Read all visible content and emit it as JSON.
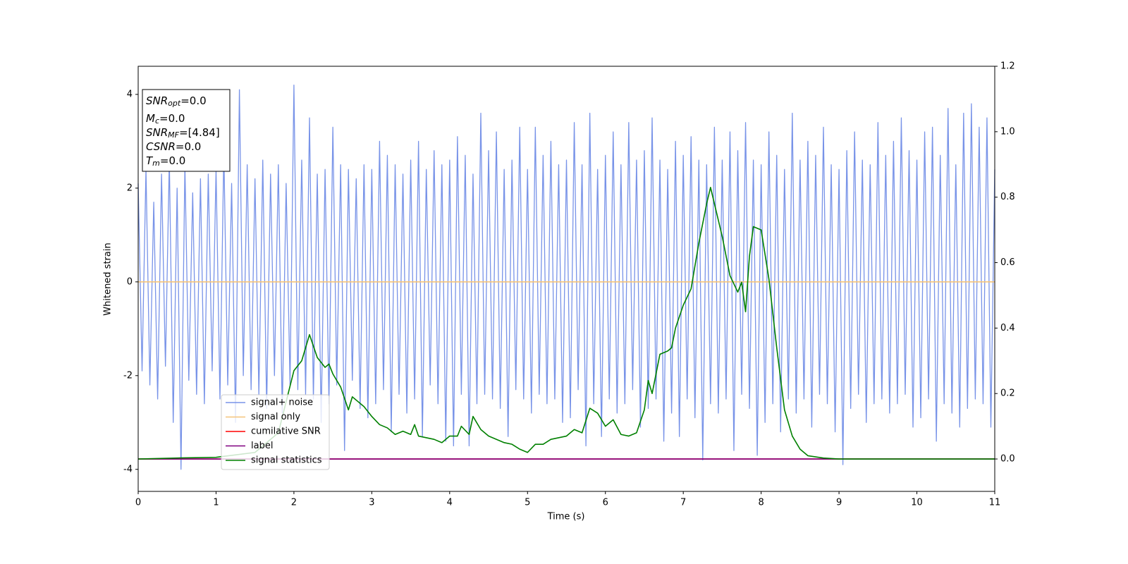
{
  "chart_data": {
    "type": "line",
    "xlabel": "Time (s)",
    "ylabel": "Whitened strain",
    "xlim": [
      0,
      11
    ],
    "xticks": [
      0,
      1,
      2,
      3,
      4,
      5,
      6,
      7,
      8,
      9,
      10,
      11
    ],
    "ylim": [
      -4.47,
      4.6
    ],
    "yticks": [
      -4,
      -2,
      0,
      2,
      4
    ],
    "y2lim": [
      -0.099,
      1.2
    ],
    "y2ticks": [
      {
        "value": 0,
        "label": "0.0"
      },
      0.2,
      0.4,
      0.6,
      0.8,
      {
        "value": 1,
        "label": "1.0"
      },
      1.2
    ],
    "legend_loc": "lower left",
    "annotation": [
      {
        "symbol": "SNR",
        "subscript": "opt",
        "text": "=0.0"
      },
      {
        "symbol": "M",
        "subscript": "c",
        "text": "=0.0"
      },
      {
        "symbol": "SNR",
        "subscript": "MF",
        "text": "=[4.84]"
      },
      {
        "symbol": "CSNR",
        "text": "=0.0"
      },
      {
        "symbol": "T",
        "subscript": "m",
        "text": "=0.0"
      }
    ],
    "series": [
      {
        "name": "signal+ noise",
        "color": "#7893e8",
        "x": [
          0,
          0.05,
          0.1,
          0.15,
          0.2,
          0.25,
          0.3,
          0.35,
          0.4,
          0.45,
          0.5,
          0.55,
          0.6,
          0.65,
          0.7,
          0.75,
          0.8,
          0.85,
          0.9,
          0.95,
          1,
          1.05,
          1.1,
          1.15,
          1.2,
          1.25,
          1.3,
          1.35,
          1.4,
          1.45,
          1.5,
          1.55,
          1.6,
          1.65,
          1.7,
          1.75,
          1.8,
          1.85,
          1.9,
          1.95,
          2,
          2.05,
          2.1,
          2.15,
          2.2,
          2.25,
          2.3,
          2.35,
          2.4,
          2.45,
          2.5,
          2.55,
          2.6,
          2.65,
          2.7,
          2.75,
          2.8,
          2.85,
          2.9,
          2.95,
          3,
          3.05,
          3.1,
          3.15,
          3.2,
          3.25,
          3.3,
          3.35,
          3.4,
          3.45,
          3.5,
          3.55,
          3.6,
          3.65,
          3.7,
          3.75,
          3.8,
          3.85,
          3.9,
          3.95,
          4,
          4.05,
          4.1,
          4.15,
          4.2,
          4.25,
          4.3,
          4.35,
          4.4,
          4.45,
          4.5,
          4.55,
          4.6,
          4.65,
          4.7,
          4.75,
          4.8,
          4.85,
          4.9,
          4.95,
          5,
          5.05,
          5.1,
          5.15,
          5.2,
          5.25,
          5.3,
          5.35,
          5.4,
          5.45,
          5.5,
          5.55,
          5.6,
          5.65,
          5.7,
          5.75,
          5.8,
          5.85,
          5.9,
          5.95,
          6,
          6.05,
          6.1,
          6.15,
          6.2,
          6.25,
          6.3,
          6.35,
          6.4,
          6.45,
          6.5,
          6.55,
          6.6,
          6.65,
          6.7,
          6.75,
          6.8,
          6.85,
          6.9,
          6.95,
          7,
          7.05,
          7.1,
          7.15,
          7.2,
          7.25,
          7.3,
          7.35,
          7.4,
          7.45,
          7.5,
          7.55,
          7.6,
          7.65,
          7.7,
          7.75,
          7.8,
          7.85,
          7.9,
          7.95,
          8,
          8.05,
          8.1,
          8.15,
          8.2,
          8.25,
          8.3,
          8.35,
          8.4,
          8.45,
          8.5,
          8.55,
          8.6,
          8.65,
          8.7,
          8.75,
          8.8,
          8.85,
          8.9,
          8.95,
          9,
          9.05,
          9.1,
          9.15,
          9.2,
          9.25,
          9.3,
          9.35,
          9.4,
          9.45,
          9.5,
          9.55,
          9.6,
          9.65,
          9.7,
          9.75,
          9.8,
          9.85,
          9.9,
          9.95,
          10,
          10.05,
          10.1,
          10.15,
          10.2,
          10.25,
          10.3,
          10.35,
          10.4,
          10.45,
          10.5,
          10.55,
          10.6,
          10.65,
          10.7,
          10.75,
          10.8,
          10.85,
          10.9,
          10.95,
          11
        ],
        "values": [
          2.1,
          -1.9,
          2.4,
          -2.2,
          1.7,
          -2.5,
          2.3,
          -1.8,
          2.6,
          -3.0,
          2.0,
          -4.0,
          2.5,
          -2.1,
          1.9,
          -2.4,
          2.2,
          -2.6,
          2.3,
          -1.9,
          2.4,
          -2.5,
          2.8,
          -2.2,
          2.1,
          -3.0,
          4.1,
          -2.0,
          2.5,
          -2.3,
          2.2,
          -2.4,
          2.6,
          -2.7,
          2.3,
          -2.0,
          2.5,
          -2.8,
          2.1,
          -2.2,
          4.2,
          -2.3,
          2.6,
          -2.4,
          3.5,
          -2.5,
          2.3,
          -3.0,
          2.4,
          -2.6,
          3.3,
          -2.2,
          2.5,
          -3.6,
          2.4,
          -2.1,
          2.2,
          -2.7,
          2.5,
          -2.9,
          2.4,
          -2.6,
          3.0,
          -2.3,
          2.7,
          -3.2,
          2.5,
          -2.4,
          2.3,
          -2.8,
          2.6,
          -2.5,
          3.0,
          -3.3,
          2.4,
          -2.2,
          2.8,
          -2.6,
          2.5,
          -3.4,
          2.6,
          -3.5,
          3.1,
          -2.4,
          2.7,
          -3.5,
          2.3,
          -2.6,
          3.6,
          -2.4,
          2.8,
          -2.5,
          3.2,
          -2.7,
          2.4,
          -3.3,
          2.6,
          -2.3,
          3.3,
          -2.5,
          2.4,
          -2.8,
          3.3,
          -2.4,
          2.7,
          -2.6,
          3.0,
          -2.5,
          2.5,
          -3.0,
          2.6,
          -2.9,
          3.4,
          -2.3,
          2.5,
          -3.5,
          3.6,
          -2.6,
          2.4,
          -3.3,
          2.7,
          -2.5,
          3.2,
          -2.8,
          2.5,
          -2.6,
          3.4,
          -2.3,
          2.6,
          -3.1,
          2.8,
          -2.7,
          3.5,
          -2.5,
          2.6,
          -3.4,
          2.4,
          -2.8,
          3.0,
          -3.3,
          2.7,
          -2.5,
          3.1,
          -2.9,
          2.6,
          -3.8,
          2.5,
          -2.6,
          3.3,
          -2.8,
          2.6,
          -2.5,
          3.2,
          -3.6,
          2.8,
          -2.4,
          3.4,
          -2.7,
          2.6,
          -3.7,
          2.5,
          -3.0,
          3.2,
          -2.6,
          2.7,
          -3.2,
          2.4,
          -2.5,
          3.6,
          -2.8,
          2.6,
          -2.5,
          3.0,
          -3.1,
          2.7,
          -2.4,
          3.3,
          -2.6,
          2.5,
          -3.2,
          2.4,
          -3.9,
          2.8,
          -2.7,
          3.2,
          -2.4,
          2.6,
          -3.0,
          2.5,
          -2.6,
          3.4,
          -2.5,
          2.7,
          -2.8,
          3.0,
          -2.6,
          3.5,
          -2.4,
          2.8,
          -3.1,
          2.6,
          -2.9,
          3.2,
          -2.5,
          3.3,
          -3.4,
          2.7,
          -2.6,
          3.7,
          -2.8,
          2.5,
          -3.1,
          3.6,
          -2.7,
          3.8,
          -2.5,
          3.3,
          -2.6,
          3.5,
          -3.1,
          2.4
        ]
      },
      {
        "name": "signal only",
        "color": "#f5c47a",
        "x": [
          0,
          11
        ],
        "values": [
          0,
          0
        ]
      },
      {
        "name": "cumilative SNR",
        "color": "#ff0000",
        "axis": "y2",
        "x": [
          0,
          11
        ],
        "values": [
          0,
          0
        ]
      },
      {
        "name": "label",
        "color": "#800080",
        "axis": "y2",
        "x": [
          0,
          11
        ],
        "values": [
          0,
          0
        ]
      },
      {
        "name": "signal statistics",
        "color": "#008000",
        "axis": "y2",
        "x": [
          0,
          0.5,
          1,
          1.5,
          1.8,
          2,
          2.1,
          2.2,
          2.3,
          2.4,
          2.45,
          2.5,
          2.6,
          2.7,
          2.75,
          2.9,
          3,
          3.1,
          3.2,
          3.3,
          3.4,
          3.5,
          3.55,
          3.6,
          3.8,
          3.9,
          4,
          4.1,
          4.15,
          4.25,
          4.3,
          4.4,
          4.5,
          4.7,
          4.8,
          4.9,
          5,
          5.1,
          5.2,
          5.3,
          5.5,
          5.6,
          5.7,
          5.8,
          5.9,
          6,
          6.1,
          6.2,
          6.3,
          6.4,
          6.5,
          6.55,
          6.6,
          6.7,
          6.8,
          6.85,
          6.9,
          7,
          7.1,
          7.2,
          7.3,
          7.35,
          7.5,
          7.6,
          7.7,
          7.75,
          7.8,
          7.85,
          7.9,
          8,
          8.1,
          8.2,
          8.3,
          8.4,
          8.5,
          8.6,
          8.8,
          9,
          10,
          11
        ],
        "values": [
          0,
          0.003,
          0.005,
          0.02,
          0.08,
          0.27,
          0.3,
          0.38,
          0.31,
          0.28,
          0.29,
          0.26,
          0.22,
          0.15,
          0.19,
          0.16,
          0.13,
          0.105,
          0.095,
          0.075,
          0.085,
          0.075,
          0.105,
          0.07,
          0.06,
          0.05,
          0.07,
          0.07,
          0.1,
          0.075,
          0.13,
          0.09,
          0.07,
          0.05,
          0.045,
          0.03,
          0.02,
          0.045,
          0.045,
          0.06,
          0.07,
          0.09,
          0.08,
          0.155,
          0.14,
          0.1,
          0.12,
          0.075,
          0.07,
          0.08,
          0.15,
          0.24,
          0.2,
          0.32,
          0.33,
          0.34,
          0.4,
          0.47,
          0.52,
          0.66,
          0.78,
          0.83,
          0.68,
          0.56,
          0.51,
          0.54,
          0.45,
          0.62,
          0.71,
          0.7,
          0.55,
          0.34,
          0.15,
          0.07,
          0.03,
          0.01,
          0.003,
          0,
          0,
          0
        ]
      }
    ]
  }
}
